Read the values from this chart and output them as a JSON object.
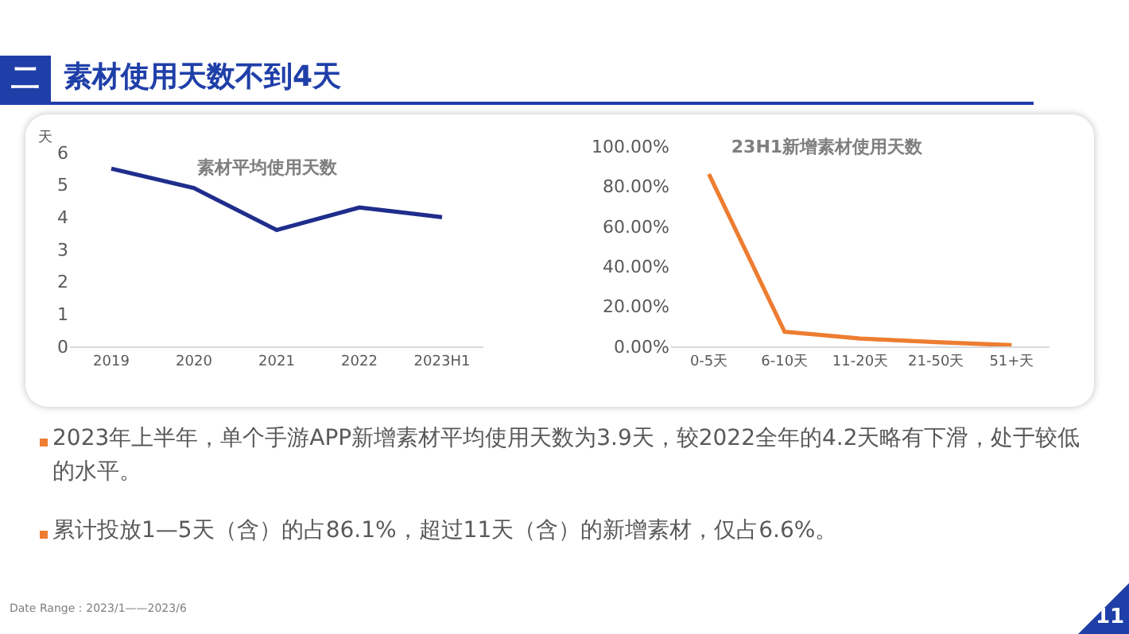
{
  "chart_data": [
    {
      "type": "line",
      "title": "素材平均使用天数",
      "ylabel": "天",
      "categories": [
        "2019",
        "2020",
        "2021",
        "2022",
        "2023H1"
      ],
      "series": [
        {
          "color": "#1f2d8c",
          "values": [
            5.5,
            4.9,
            3.6,
            4.3,
            4.0
          ]
        }
      ],
      "ylim": [
        0,
        6
      ],
      "yticks": [
        0,
        1,
        2,
        3,
        4,
        5,
        6
      ],
      "grid": false,
      "marker": "none",
      "line_style": "solid"
    },
    {
      "type": "line",
      "title": "23H1新增素材使用天数",
      "categories": [
        "0-5天",
        "6-10天",
        "11-20天",
        "21-50天",
        "51+天"
      ],
      "series": [
        {
          "color": "#ed7d31",
          "values": [
            86.1,
            7.3,
            3.9,
            2.1,
            0.6
          ]
        }
      ],
      "ylim": [
        0,
        100
      ],
      "yticks": [
        {
          "value": 0,
          "label": "0.00%"
        },
        {
          "value": 20,
          "label": "20.00%"
        },
        {
          "value": 40,
          "label": "40.00%"
        },
        {
          "value": 60,
          "label": "60.00%"
        },
        {
          "value": 80,
          "label": "80.00%"
        },
        {
          "value": 100,
          "label": "100.00%"
        }
      ],
      "grid": false,
      "marker": "none",
      "line_style": "solid"
    },
    {
      "type": "other",
      "title": "素材使用天数不到4天",
      "annotations": [
        "二",
        "2023年上半年，单个手游APP新增素材平均使用天数为3.9天，较2022全年的4.2天略有下滑，处于较低的水平。",
        "累计投放1—5天（含）的占86.1%，超过11天（含）的新增素材，仅占6.6%。",
        "Date Range：2023/1——2023/6",
        "11"
      ]
    }
  ]
}
